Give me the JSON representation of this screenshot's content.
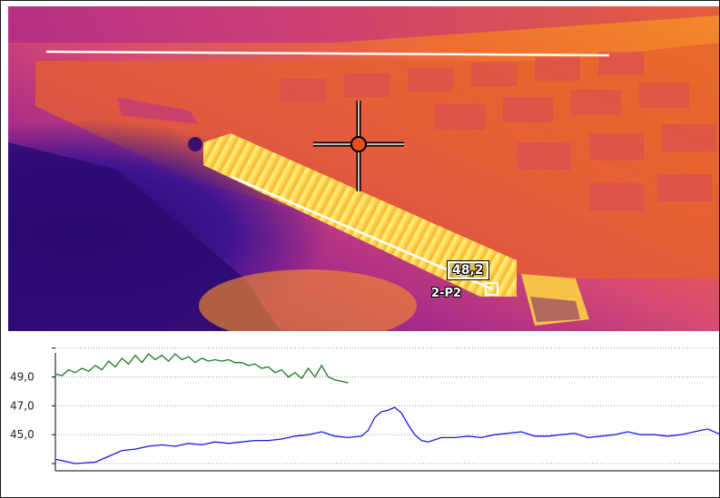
{
  "thermal_view": {
    "spot_value": "48,2",
    "spot_point_label": "2-P2",
    "palette": [
      "#2a0a6e",
      "#7a1aa0",
      "#c03a8a",
      "#e9602f",
      "#f7a21b",
      "#ffe86a"
    ],
    "crosshair_color": "#e6501e"
  },
  "chart_data": {
    "type": "line",
    "title": "",
    "xlabel": "",
    "ylabel": "",
    "yticks": [
      "49,0",
      "47,0",
      "45,0"
    ],
    "ylim": [
      42.5,
      51.3
    ],
    "xlim": [
      0,
      100
    ],
    "grid": true,
    "series": [
      {
        "color": "#1f7a1f",
        "x": [
          0,
          1,
          2,
          3,
          4,
          5,
          6,
          7,
          8,
          9,
          10,
          11,
          12,
          13,
          14,
          15,
          16,
          17,
          18,
          19,
          20,
          21,
          22,
          23,
          24,
          25,
          26,
          27,
          28,
          29,
          30,
          31,
          32,
          33,
          34,
          35,
          36,
          37,
          38,
          39,
          40,
          41,
          42,
          43,
          44
        ],
        "values": [
          49.2,
          49.1,
          49.5,
          49.3,
          49.6,
          49.4,
          49.8,
          49.5,
          50.1,
          49.7,
          50.3,
          49.9,
          50.5,
          50.0,
          50.6,
          50.2,
          50.5,
          50.1,
          50.6,
          50.2,
          50.4,
          50.0,
          50.3,
          50.1,
          50.2,
          50.1,
          50.2,
          50.0,
          50.0,
          49.8,
          49.9,
          49.6,
          49.7,
          49.3,
          49.5,
          49.0,
          49.3,
          48.9,
          49.6,
          49.0,
          49.8,
          49.0,
          48.8,
          48.7,
          48.6
        ]
      },
      {
        "color": "#1a1ae6",
        "x": [
          0,
          3,
          6,
          8,
          10,
          12,
          14,
          16,
          18,
          20,
          22,
          24,
          26,
          28,
          30,
          32,
          34,
          36,
          38,
          40,
          42,
          44,
          46,
          47,
          48,
          49,
          50,
          51,
          52,
          53,
          54,
          55,
          56,
          58,
          60,
          62,
          64,
          66,
          68,
          70,
          72,
          74,
          76,
          78,
          80,
          82,
          84,
          86,
          88,
          90,
          92,
          94,
          96,
          98,
          100
        ],
        "values": [
          43.3,
          43.0,
          43.1,
          43.5,
          43.9,
          44.0,
          44.2,
          44.3,
          44.2,
          44.4,
          44.3,
          44.5,
          44.4,
          44.5,
          44.6,
          44.6,
          44.7,
          44.9,
          45.0,
          45.2,
          44.9,
          44.8,
          44.9,
          45.3,
          46.2,
          46.6,
          46.7,
          46.9,
          46.5,
          45.7,
          45.0,
          44.6,
          44.5,
          44.8,
          44.8,
          44.9,
          44.8,
          45.0,
          45.1,
          45.2,
          44.9,
          44.9,
          45.0,
          45.1,
          44.8,
          44.9,
          45.0,
          45.2,
          45.0,
          45.0,
          44.9,
          45.0,
          45.2,
          45.4,
          45.0
        ]
      }
    ]
  }
}
